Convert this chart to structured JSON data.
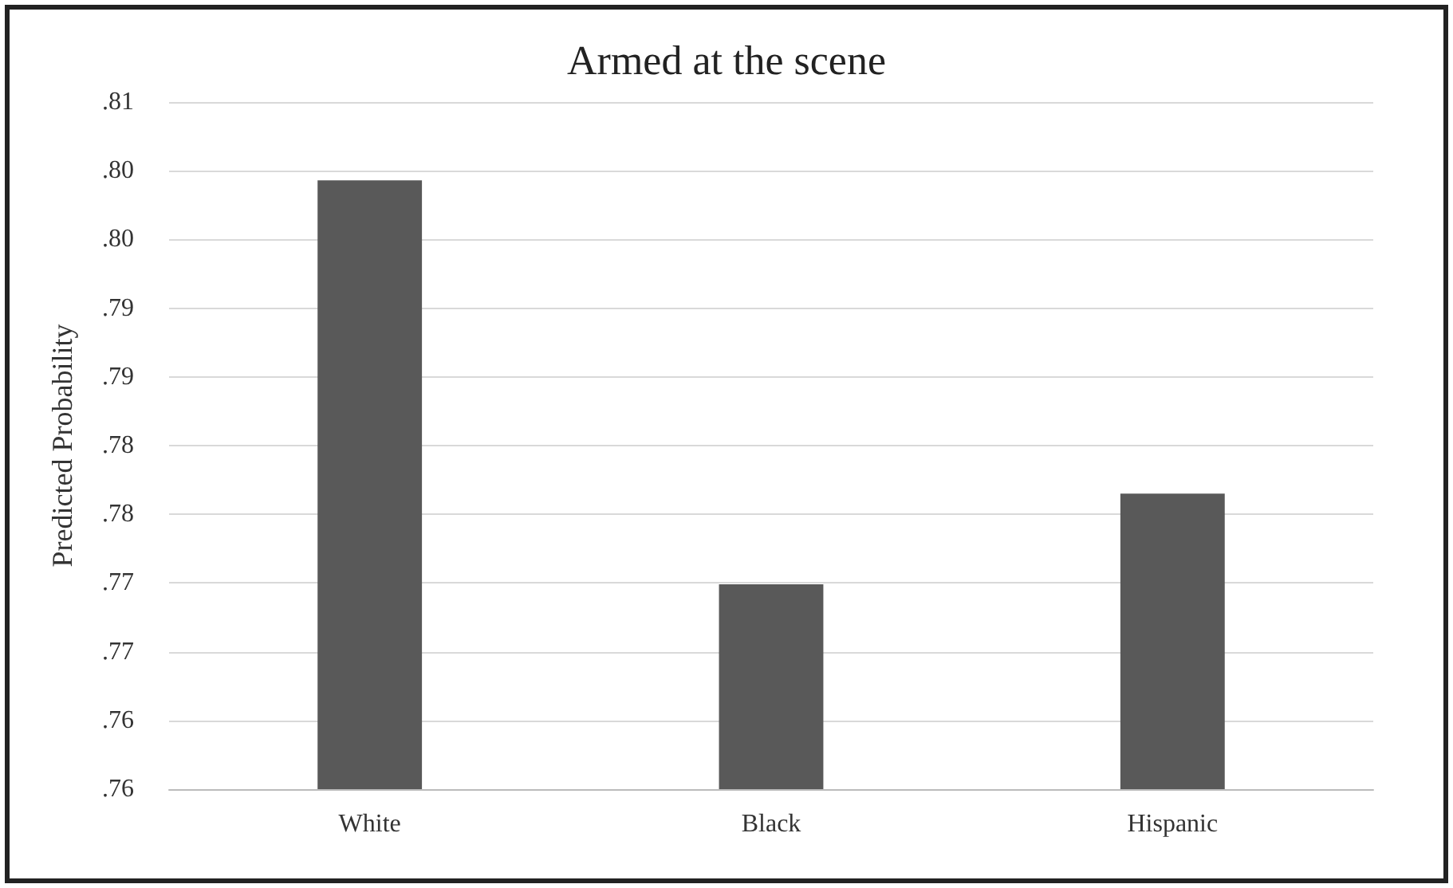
{
  "chart_data": {
    "type": "bar",
    "title": "Armed at the scene",
    "ylabel": "Predicted Probability",
    "categories": [
      "White",
      "Black",
      "Hispanic"
    ],
    "values": [
      0.7993,
      0.7699,
      0.7765
    ],
    "color": "#595959",
    "ylim": [
      0.755,
      0.805
    ],
    "yticks": [
      {
        "value": 0.755,
        "label": ".76"
      },
      {
        "value": 0.76,
        "label": ".76"
      },
      {
        "value": 0.765,
        "label": ".77"
      },
      {
        "value": 0.77,
        "label": ".77"
      },
      {
        "value": 0.775,
        "label": ".78"
      },
      {
        "value": 0.78,
        "label": ".78"
      },
      {
        "value": 0.785,
        "label": ".79"
      },
      {
        "value": 0.79,
        "label": ".79"
      },
      {
        "value": 0.795,
        "label": ".80"
      },
      {
        "value": 0.8,
        "label": ".80"
      },
      {
        "value": 0.805,
        "label": ".81"
      }
    ],
    "grid": "y"
  }
}
